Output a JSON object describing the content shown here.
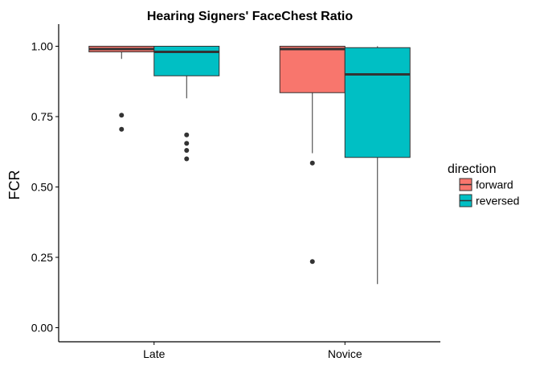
{
  "chart_data": {
    "type": "boxplot",
    "title": "Hearing Signers' FaceChest Ratio",
    "xlabel": "",
    "ylabel": "FCR",
    "ylim": [
      -0.05,
      1.05
    ],
    "yticks": [
      0.0,
      0.25,
      0.5,
      0.75,
      1.0
    ],
    "ytick_labels": [
      "0.00",
      "0.25",
      "0.50",
      "0.75",
      "1.00"
    ],
    "categories": [
      "Late",
      "Novice"
    ],
    "legend": {
      "title": "direction",
      "position": "right"
    },
    "grid": false,
    "series": [
      {
        "name": "forward",
        "color": "#F8766D",
        "boxes": [
          {
            "category": "Late",
            "whisker_low": 0.955,
            "q1": 0.98,
            "median": 0.99,
            "q3": 1.0,
            "whisker_high": 1.0,
            "outliers": [
              0.755,
              0.705
            ]
          },
          {
            "category": "Novice",
            "whisker_low": 0.62,
            "q1": 0.835,
            "median": 0.99,
            "q3": 1.0,
            "whisker_high": 1.0,
            "outliers": [
              0.585,
              0.235
            ]
          }
        ]
      },
      {
        "name": "reversed",
        "color": "#00BFC4",
        "boxes": [
          {
            "category": "Late",
            "whisker_low": 0.815,
            "q1": 0.895,
            "median": 0.98,
            "q3": 1.0,
            "whisker_high": 1.0,
            "outliers": [
              0.685,
              0.655,
              0.63,
              0.6
            ]
          },
          {
            "category": "Novice",
            "whisker_low": 0.155,
            "q1": 0.605,
            "median": 0.9,
            "q3": 0.995,
            "whisker_high": 1.0,
            "outliers": []
          }
        ]
      }
    ]
  }
}
